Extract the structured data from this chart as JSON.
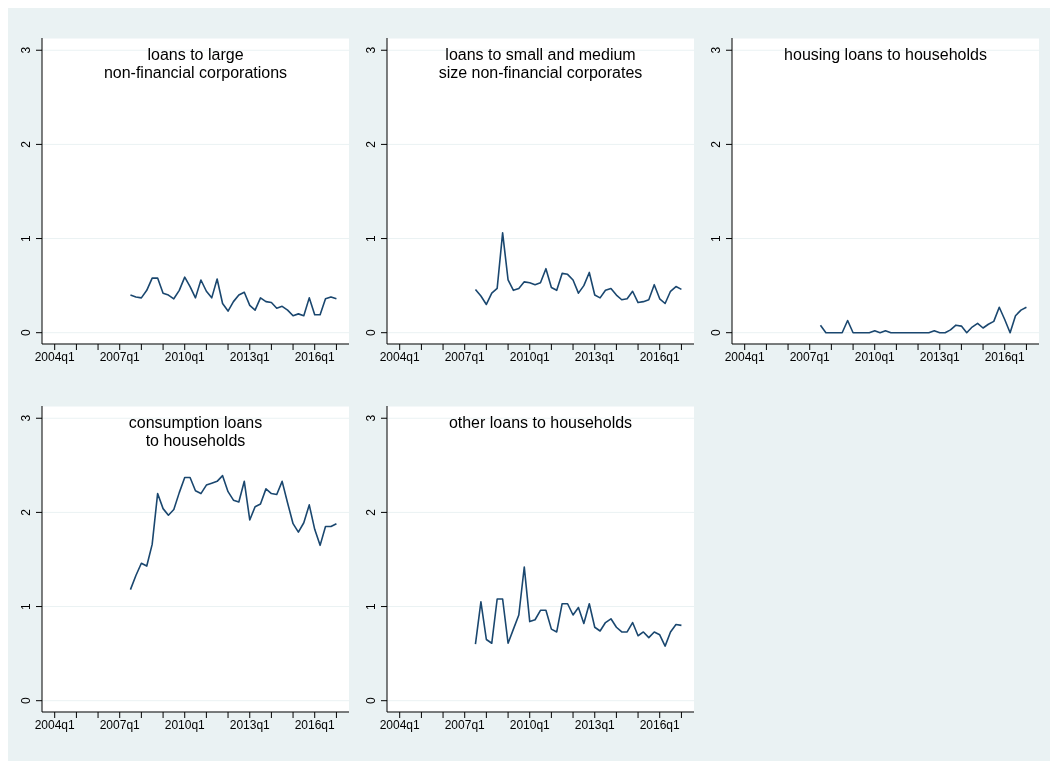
{
  "chart_data": [
    {
      "type": "line",
      "title": "loans to large\nnon-financial corporations",
      "xlim": [
        "2003-06",
        "2017-08"
      ],
      "ylim": [
        -0.12,
        3.13
      ],
      "yticks": [
        0,
        1,
        2,
        3
      ],
      "grid": "y",
      "xticks": [
        {
          "value": "2004-01",
          "label": "2004q1"
        },
        {
          "value": "2005-01",
          "label": null
        },
        {
          "value": "2006-01",
          "label": null
        },
        {
          "value": "2007-01",
          "label": "2007q1"
        },
        {
          "value": "2008-01",
          "label": null
        },
        {
          "value": "2009-01",
          "label": null
        },
        {
          "value": "2010-01",
          "label": "2010q1"
        },
        {
          "value": "2011-01",
          "label": null
        },
        {
          "value": "2012-01",
          "label": null
        },
        {
          "value": "2013-01",
          "label": "2013q1"
        },
        {
          "value": "2014-01",
          "label": null
        },
        {
          "value": "2015-01",
          "label": null
        },
        {
          "value": "2016-01",
          "label": "2016q1"
        },
        {
          "value": "2017-01",
          "label": null
        }
      ],
      "x": [
        "2007-07",
        "2007-10",
        "2008-01",
        "2008-04",
        "2008-07",
        "2008-10",
        "2009-01",
        "2009-04",
        "2009-07",
        "2009-10",
        "2010-01",
        "2010-04",
        "2010-07",
        "2010-10",
        "2011-01",
        "2011-04",
        "2011-07",
        "2011-10",
        "2012-01",
        "2012-04",
        "2012-07",
        "2012-10",
        "2013-01",
        "2013-04",
        "2013-07",
        "2013-10",
        "2014-01",
        "2014-04",
        "2014-07",
        "2014-10",
        "2015-01",
        "2015-04",
        "2015-07",
        "2015-10",
        "2016-01",
        "2016-04",
        "2016-07",
        "2016-10",
        "2017-01"
      ],
      "series": [
        {
          "color": "#1a476f",
          "values": [
            0.4,
            0.38,
            0.37,
            0.45,
            0.58,
            0.58,
            0.42,
            0.4,
            0.36,
            0.45,
            0.59,
            0.49,
            0.37,
            0.56,
            0.44,
            0.37,
            0.57,
            0.31,
            0.23,
            0.33,
            0.4,
            0.43,
            0.29,
            0.24,
            0.37,
            0.33,
            0.32,
            0.26,
            0.28,
            0.24,
            0.18,
            0.2,
            0.18,
            0.37,
            0.19,
            0.19,
            0.36,
            0.38,
            0.36
          ]
        }
      ]
    },
    {
      "type": "line",
      "title": "loans to small and medium\nsize non-financial corporates",
      "xlim": [
        "2003-06",
        "2017-08"
      ],
      "ylim": [
        -0.12,
        3.13
      ],
      "yticks": [
        0,
        1,
        2,
        3
      ],
      "grid": "y",
      "xticks": [
        {
          "value": "2004-01",
          "label": "2004q1"
        },
        {
          "value": "2005-01",
          "label": null
        },
        {
          "value": "2006-01",
          "label": null
        },
        {
          "value": "2007-01",
          "label": "2007q1"
        },
        {
          "value": "2008-01",
          "label": null
        },
        {
          "value": "2009-01",
          "label": null
        },
        {
          "value": "2010-01",
          "label": "2010q1"
        },
        {
          "value": "2011-01",
          "label": null
        },
        {
          "value": "2012-01",
          "label": null
        },
        {
          "value": "2013-01",
          "label": "2013q1"
        },
        {
          "value": "2014-01",
          "label": null
        },
        {
          "value": "2015-01",
          "label": null
        },
        {
          "value": "2016-01",
          "label": "2016q1"
        },
        {
          "value": "2017-01",
          "label": null
        }
      ],
      "x": [
        "2007-07",
        "2007-10",
        "2008-01",
        "2008-04",
        "2008-07",
        "2008-10",
        "2009-01",
        "2009-04",
        "2009-07",
        "2009-10",
        "2010-01",
        "2010-04",
        "2010-07",
        "2010-10",
        "2011-01",
        "2011-04",
        "2011-07",
        "2011-10",
        "2012-01",
        "2012-04",
        "2012-07",
        "2012-10",
        "2013-01",
        "2013-04",
        "2013-07",
        "2013-10",
        "2014-01",
        "2014-04",
        "2014-07",
        "2014-10",
        "2015-01",
        "2015-04",
        "2015-07",
        "2015-10",
        "2016-01",
        "2016-04",
        "2016-07",
        "2016-10",
        "2017-01"
      ],
      "series": [
        {
          "color": "#1a476f",
          "values": [
            0.46,
            0.39,
            0.3,
            0.42,
            0.47,
            1.06,
            0.56,
            0.45,
            0.47,
            0.54,
            0.53,
            0.51,
            0.53,
            0.68,
            0.48,
            0.45,
            0.63,
            0.62,
            0.56,
            0.42,
            0.5,
            0.64,
            0.4,
            0.37,
            0.45,
            0.47,
            0.4,
            0.35,
            0.36,
            0.44,
            0.32,
            0.33,
            0.35,
            0.51,
            0.36,
            0.31,
            0.44,
            0.49,
            0.46
          ]
        }
      ]
    },
    {
      "type": "line",
      "title": "housing loans to households",
      "xlim": [
        "2003-06",
        "2017-08"
      ],
      "ylim": [
        -0.12,
        3.13
      ],
      "yticks": [
        0,
        1,
        2,
        3
      ],
      "grid": "y",
      "xticks": [
        {
          "value": "2004-01",
          "label": "2004q1"
        },
        {
          "value": "2005-01",
          "label": null
        },
        {
          "value": "2006-01",
          "label": null
        },
        {
          "value": "2007-01",
          "label": "2007q1"
        },
        {
          "value": "2008-01",
          "label": null
        },
        {
          "value": "2009-01",
          "label": null
        },
        {
          "value": "2010-01",
          "label": "2010q1"
        },
        {
          "value": "2011-01",
          "label": null
        },
        {
          "value": "2012-01",
          "label": null
        },
        {
          "value": "2013-01",
          "label": "2013q1"
        },
        {
          "value": "2014-01",
          "label": null
        },
        {
          "value": "2015-01",
          "label": null
        },
        {
          "value": "2016-01",
          "label": "2016q1"
        },
        {
          "value": "2017-01",
          "label": null
        }
      ],
      "x": [
        "2007-07",
        "2007-10",
        "2008-01",
        "2008-04",
        "2008-07",
        "2008-10",
        "2009-01",
        "2009-04",
        "2009-07",
        "2009-10",
        "2010-01",
        "2010-04",
        "2010-07",
        "2010-10",
        "2011-01",
        "2011-04",
        "2011-07",
        "2011-10",
        "2012-01",
        "2012-04",
        "2012-07",
        "2012-10",
        "2013-01",
        "2013-04",
        "2013-07",
        "2013-10",
        "2014-01",
        "2014-04",
        "2014-07",
        "2014-10",
        "2015-01",
        "2015-04",
        "2015-07",
        "2015-10",
        "2016-01",
        "2016-04",
        "2016-07",
        "2016-10",
        "2017-01"
      ],
      "series": [
        {
          "color": "#1a476f",
          "values": [
            0.08,
            0,
            0,
            0,
            0,
            0.13,
            0,
            0,
            0,
            0,
            0.02,
            0,
            0.02,
            0,
            0,
            0,
            0,
            0,
            0,
            0,
            0,
            0.02,
            0,
            0,
            0.03,
            0.08,
            0.07,
            0,
            0.06,
            0.1,
            0.05,
            0.09,
            0.12,
            0.27,
            0.14,
            0,
            0.18,
            0.24,
            0.27
          ]
        }
      ]
    },
    {
      "type": "line",
      "title": "consumption loans\nto households",
      "xlim": [
        "2003-06",
        "2017-08"
      ],
      "ylim": [
        -0.12,
        3.13
      ],
      "yticks": [
        0,
        1,
        2,
        3
      ],
      "grid": "y",
      "xticks": [
        {
          "value": "2004-01",
          "label": "2004q1"
        },
        {
          "value": "2005-01",
          "label": null
        },
        {
          "value": "2006-01",
          "label": null
        },
        {
          "value": "2007-01",
          "label": "2007q1"
        },
        {
          "value": "2008-01",
          "label": null
        },
        {
          "value": "2009-01",
          "label": null
        },
        {
          "value": "2010-01",
          "label": "2010q1"
        },
        {
          "value": "2011-01",
          "label": null
        },
        {
          "value": "2012-01",
          "label": null
        },
        {
          "value": "2013-01",
          "label": "2013q1"
        },
        {
          "value": "2014-01",
          "label": null
        },
        {
          "value": "2015-01",
          "label": null
        },
        {
          "value": "2016-01",
          "label": "2016q1"
        },
        {
          "value": "2017-01",
          "label": null
        }
      ],
      "x": [
        "2007-07",
        "2007-10",
        "2008-01",
        "2008-04",
        "2008-07",
        "2008-10",
        "2009-01",
        "2009-04",
        "2009-07",
        "2009-10",
        "2010-01",
        "2010-04",
        "2010-07",
        "2010-10",
        "2011-01",
        "2011-04",
        "2011-07",
        "2011-10",
        "2012-01",
        "2012-04",
        "2012-07",
        "2012-10",
        "2013-01",
        "2013-04",
        "2013-07",
        "2013-10",
        "2014-01",
        "2014-04",
        "2014-07",
        "2014-10",
        "2015-01",
        "2015-04",
        "2015-07",
        "2015-10",
        "2016-01",
        "2016-04",
        "2016-07",
        "2016-10",
        "2017-01"
      ],
      "series": [
        {
          "color": "#1a476f",
          "values": [
            1.18,
            1.33,
            1.46,
            1.43,
            1.66,
            2.2,
            2.04,
            1.97,
            2.03,
            2.21,
            2.37,
            2.37,
            2.23,
            2.2,
            2.29,
            2.31,
            2.33,
            2.39,
            2.22,
            2.13,
            2.11,
            2.33,
            1.92,
            2.06,
            2.09,
            2.25,
            2.2,
            2.19,
            2.33,
            2.1,
            1.88,
            1.79,
            1.89,
            2.08,
            1.82,
            1.65,
            1.85,
            1.85,
            1.88
          ]
        }
      ]
    },
    {
      "type": "line",
      "title": "other loans to households",
      "xlim": [
        "2003-06",
        "2017-08"
      ],
      "ylim": [
        -0.12,
        3.13
      ],
      "yticks": [
        0,
        1,
        2,
        3
      ],
      "grid": "y",
      "xticks": [
        {
          "value": "2004-01",
          "label": "2004q1"
        },
        {
          "value": "2005-01",
          "label": null
        },
        {
          "value": "2006-01",
          "label": null
        },
        {
          "value": "2007-01",
          "label": "2007q1"
        },
        {
          "value": "2008-01",
          "label": null
        },
        {
          "value": "2009-01",
          "label": null
        },
        {
          "value": "2010-01",
          "label": "2010q1"
        },
        {
          "value": "2011-01",
          "label": null
        },
        {
          "value": "2012-01",
          "label": null
        },
        {
          "value": "2013-01",
          "label": "2013q1"
        },
        {
          "value": "2014-01",
          "label": null
        },
        {
          "value": "2015-01",
          "label": null
        },
        {
          "value": "2016-01",
          "label": "2016q1"
        },
        {
          "value": "2017-01",
          "label": null
        }
      ],
      "x": [
        "2007-07",
        "2007-10",
        "2008-01",
        "2008-04",
        "2008-07",
        "2008-10",
        "2009-01",
        "2009-04",
        "2009-07",
        "2009-10",
        "2010-01",
        "2010-04",
        "2010-07",
        "2010-10",
        "2011-01",
        "2011-04",
        "2011-07",
        "2011-10",
        "2012-01",
        "2012-04",
        "2012-07",
        "2012-10",
        "2013-01",
        "2013-04",
        "2013-07",
        "2013-10",
        "2014-01",
        "2014-04",
        "2014-07",
        "2014-10",
        "2015-01",
        "2015-04",
        "2015-07",
        "2015-10",
        "2016-01",
        "2016-04",
        "2016-07",
        "2016-10",
        "2017-01"
      ],
      "series": [
        {
          "color": "#1a476f",
          "values": [
            0.6,
            1.05,
            0.65,
            0.61,
            1.08,
            1.08,
            0.61,
            0.76,
            0.91,
            1.42,
            0.84,
            0.86,
            0.96,
            0.96,
            0.76,
            0.73,
            1.03,
            1.03,
            0.91,
            0.99,
            0.82,
            1.03,
            0.78,
            0.74,
            0.83,
            0.87,
            0.78,
            0.73,
            0.73,
            0.83,
            0.69,
            0.73,
            0.67,
            0.73,
            0.7,
            0.58,
            0.73,
            0.81,
            0.8
          ]
        }
      ]
    }
  ]
}
